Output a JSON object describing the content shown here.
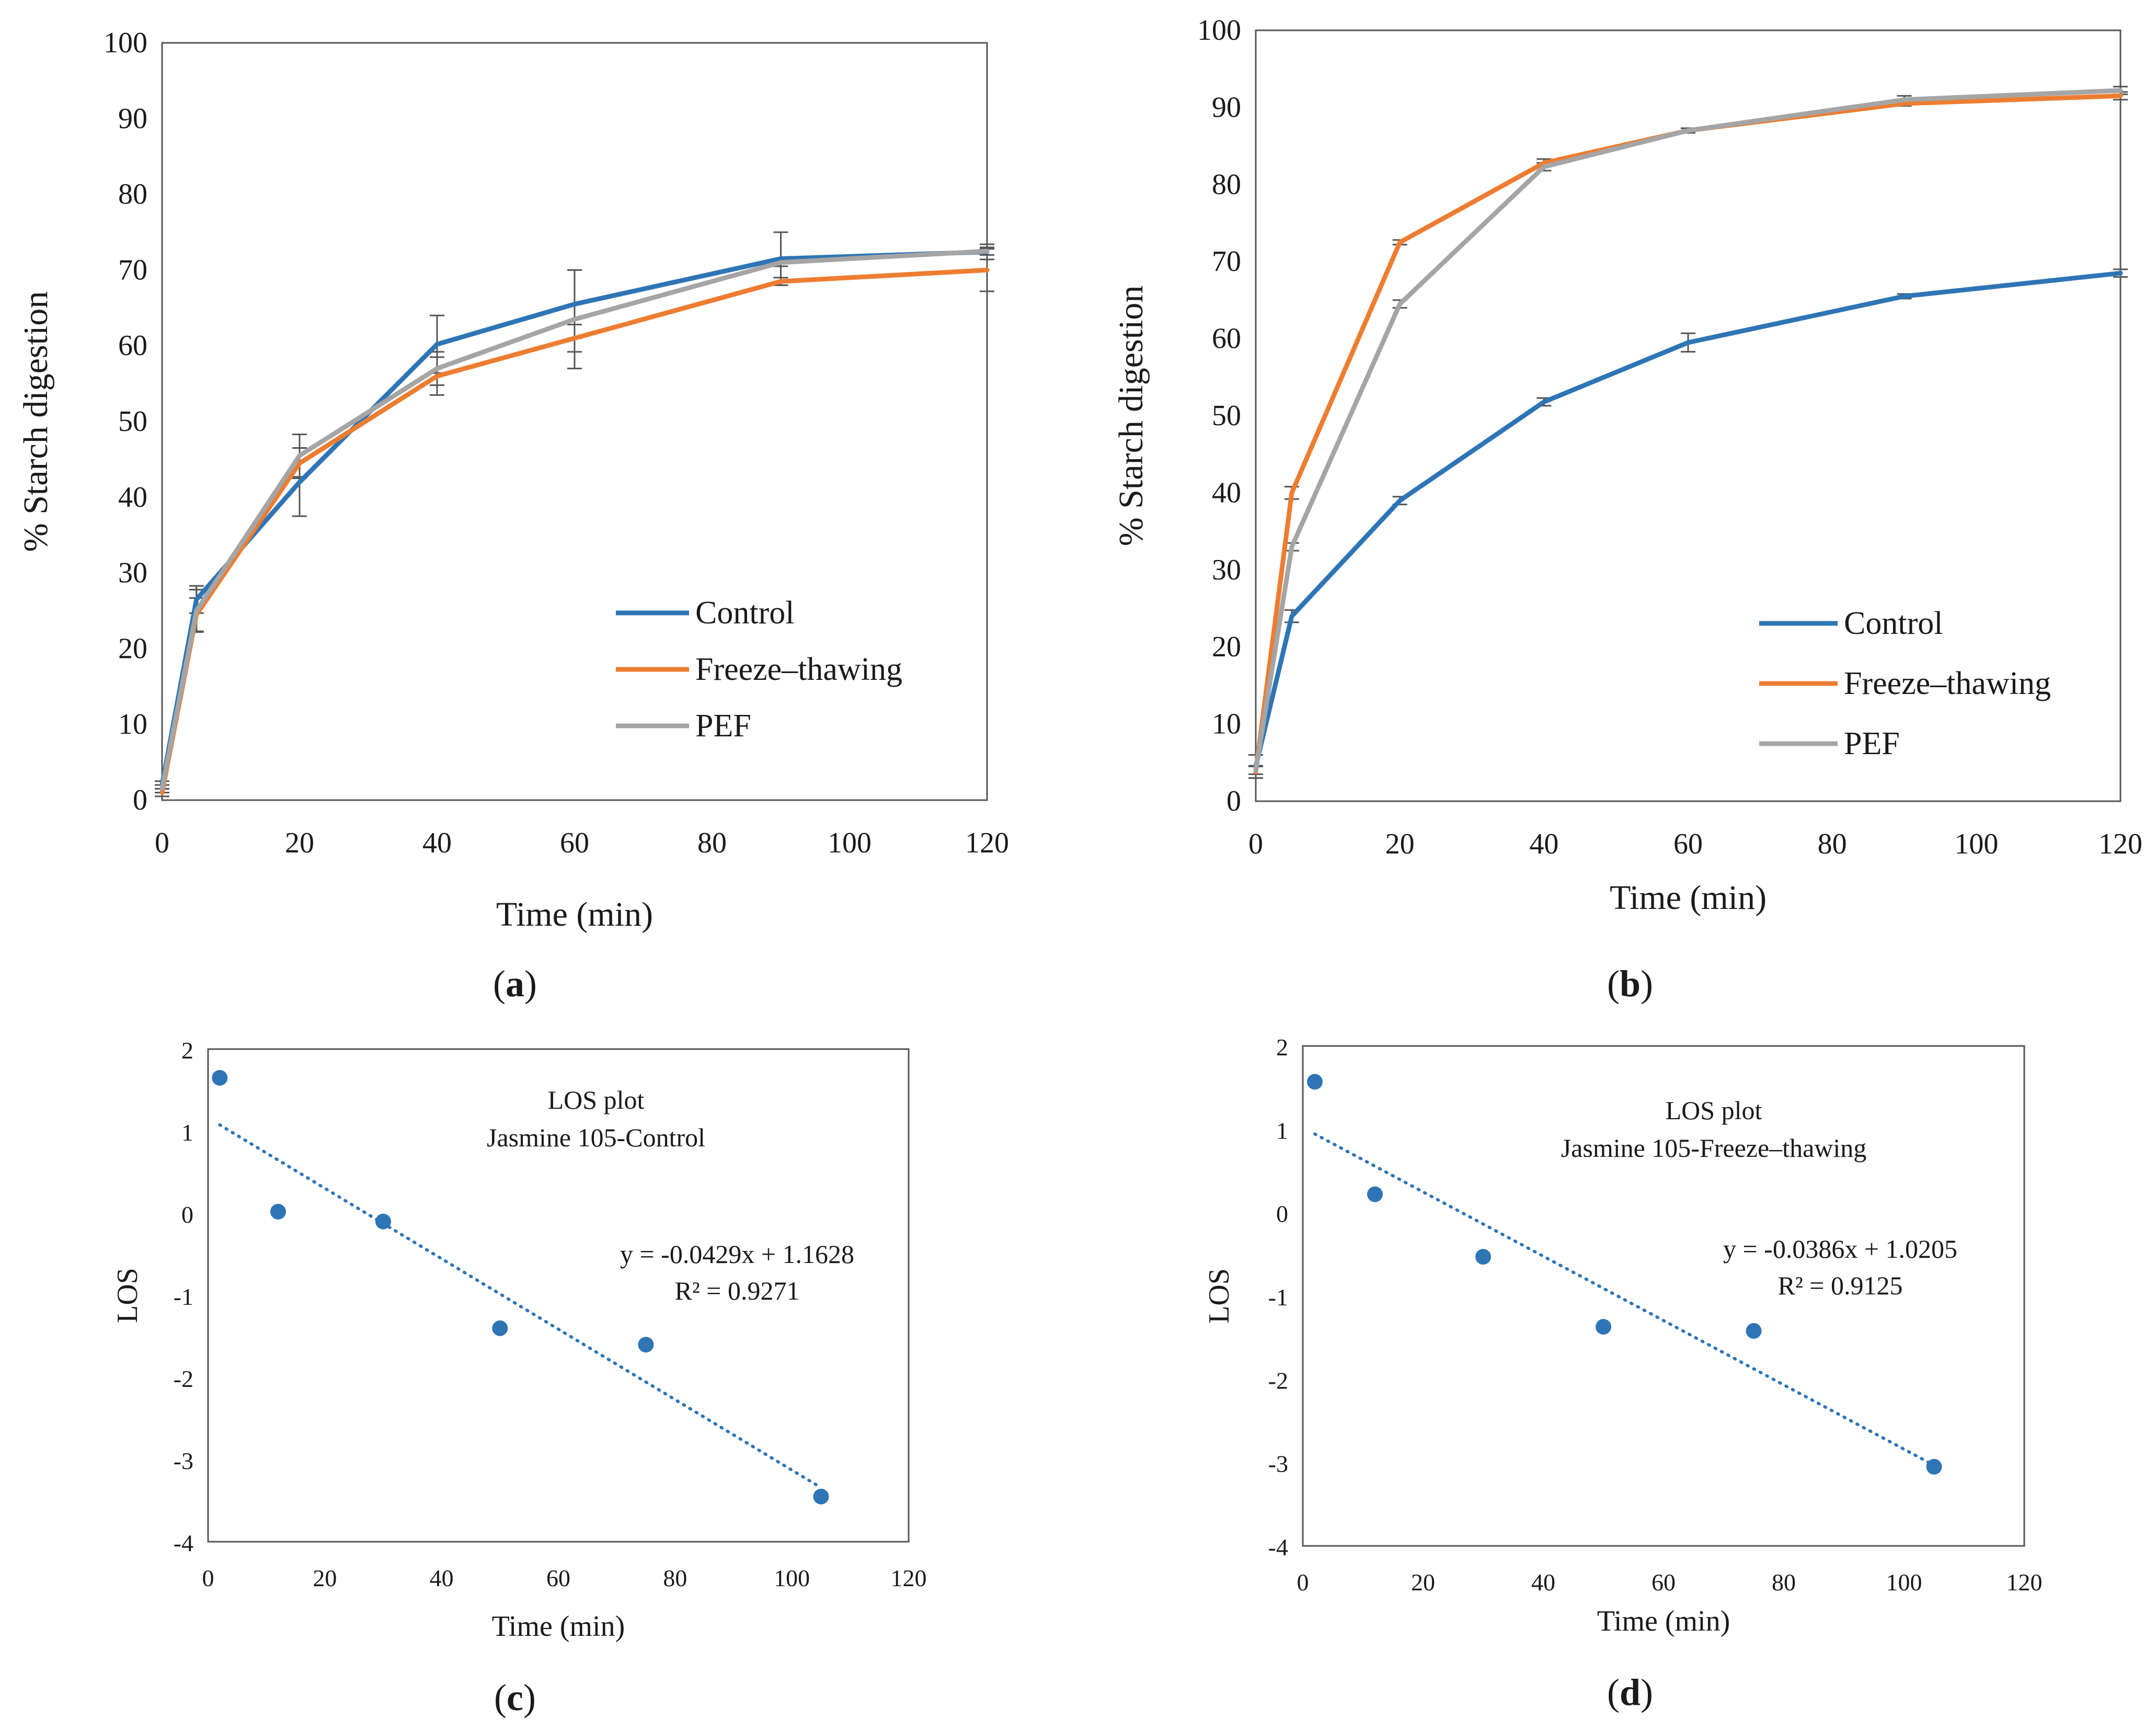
{
  "chart_data": [
    {
      "id": "a",
      "type": "line",
      "panel_label": "(a)",
      "panel_letter": "a",
      "xlabel": "Time (min)",
      "ylabel": "% Starch digestion",
      "xlim": [
        0,
        120
      ],
      "ylim": [
        0,
        100
      ],
      "xticks": [
        0,
        20,
        40,
        60,
        80,
        100,
        120
      ],
      "yticks": [
        0,
        10,
        20,
        30,
        40,
        50,
        60,
        70,
        80,
        90,
        100
      ],
      "x": [
        0,
        5,
        20,
        40,
        60,
        90,
        120
      ],
      "legend_position": "bottom-right",
      "series": [
        {
          "name": "Control",
          "color": "#2e75b6",
          "values": [
            2.0,
            26.5,
            42.0,
            60.2,
            65.5,
            71.5,
            72.4
          ],
          "errors": [
            0.5,
            1.8,
            4.5,
            3.8,
            4.5,
            3.5,
            1.0
          ]
        },
        {
          "name": "Freeze–thawing",
          "color": "#ed7d31",
          "values": [
            1.0,
            24.5,
            44.5,
            56.0,
            61.0,
            68.5,
            70.0
          ],
          "errors": [
            0.5,
            2.2,
            2.0,
            2.5,
            1.8,
            0.5,
            2.8
          ]
        },
        {
          "name": "PEF",
          "color": "#a5a5a5",
          "values": [
            1.5,
            25.0,
            45.5,
            57.0,
            63.5,
            71.0,
            72.5
          ],
          "errors": [
            0.5,
            2.8,
            2.8,
            2.2,
            6.5,
            0.5,
            0.5
          ]
        }
      ]
    },
    {
      "id": "b",
      "type": "line",
      "panel_label": "(b)",
      "panel_letter": "b",
      "xlabel": "Time (min)",
      "ylabel": "% Starch digestion",
      "xlim": [
        0,
        120
      ],
      "ylim": [
        0,
        100
      ],
      "xticks": [
        0,
        20,
        40,
        60,
        80,
        100,
        120
      ],
      "yticks": [
        0,
        10,
        20,
        30,
        40,
        50,
        60,
        70,
        80,
        90,
        100
      ],
      "x": [
        0,
        5,
        20,
        40,
        60,
        90,
        120
      ],
      "legend_position": "bottom-right",
      "series": [
        {
          "name": "Control",
          "color": "#2e75b6",
          "values": [
            4.5,
            24.0,
            39.0,
            51.8,
            59.5,
            65.5,
            68.5
          ],
          "errors": [
            1.5,
            0.8,
            0.5,
            0.5,
            1.2,
            0.3,
            0.5
          ]
        },
        {
          "name": "Freeze–thawing",
          "color": "#ed7d31",
          "values": [
            3.8,
            40.0,
            72.5,
            82.8,
            87.0,
            90.5,
            91.5
          ],
          "errors": [
            0.8,
            0.8,
            0.3,
            0.5,
            0.3,
            0.3,
            0.5
          ]
        },
        {
          "name": "PEF",
          "color": "#a5a5a5",
          "values": [
            4.0,
            33.0,
            64.5,
            82.3,
            87.0,
            91.0,
            92.2
          ],
          "errors": [
            0.5,
            0.5,
            0.5,
            0.5,
            0.3,
            0.5,
            0.5
          ]
        }
      ]
    },
    {
      "id": "c",
      "type": "scatter",
      "panel_label": "(c)",
      "panel_letter": "c",
      "title_lines": [
        "LOS plot",
        "Jasmine 105-Control"
      ],
      "xlabel": "Time (min)",
      "ylabel": "LOS",
      "xlim": [
        0,
        120
      ],
      "ylim": [
        -4,
        2
      ],
      "xticks": [
        0,
        20,
        40,
        60,
        80,
        100,
        120
      ],
      "yticks": [
        -4,
        -3,
        -2,
        -1,
        0,
        1,
        2
      ],
      "point_color": "#2e75b6",
      "points": {
        "x": [
          2,
          12,
          30,
          50,
          75,
          105
        ],
        "y": [
          1.65,
          0.02,
          -0.1,
          -1.4,
          -1.6,
          -3.45
        ]
      },
      "trendline": {
        "slope": -0.0429,
        "intercept": 1.1628,
        "x_range": [
          2,
          105
        ]
      },
      "equation": "y = -0.0429x + 1.1628",
      "r2": "R² = 0.9271"
    },
    {
      "id": "d",
      "type": "scatter",
      "panel_label": "(d)",
      "panel_letter": "d",
      "title_lines": [
        "LOS plot",
        "Jasmine 105-Freeze–thawing"
      ],
      "xlabel": "Time (min)",
      "ylabel": "LOS",
      "xlim": [
        0,
        120
      ],
      "ylim": [
        -4,
        2
      ],
      "xticks": [
        0,
        20,
        40,
        60,
        80,
        100,
        120
      ],
      "yticks": [
        -4,
        -3,
        -2,
        -1,
        0,
        1,
        2
      ],
      "point_color": "#2e75b6",
      "points": {
        "x": [
          2,
          12,
          30,
          50,
          75,
          105
        ],
        "y": [
          1.57,
          0.22,
          -0.53,
          -1.37,
          -1.42,
          -3.05
        ]
      },
      "trendline": {
        "slope": -0.0386,
        "intercept": 1.0205,
        "x_range": [
          2,
          105
        ]
      },
      "equation": "y = -0.0386x + 1.0205",
      "r2": "R² = 0.9125"
    }
  ]
}
